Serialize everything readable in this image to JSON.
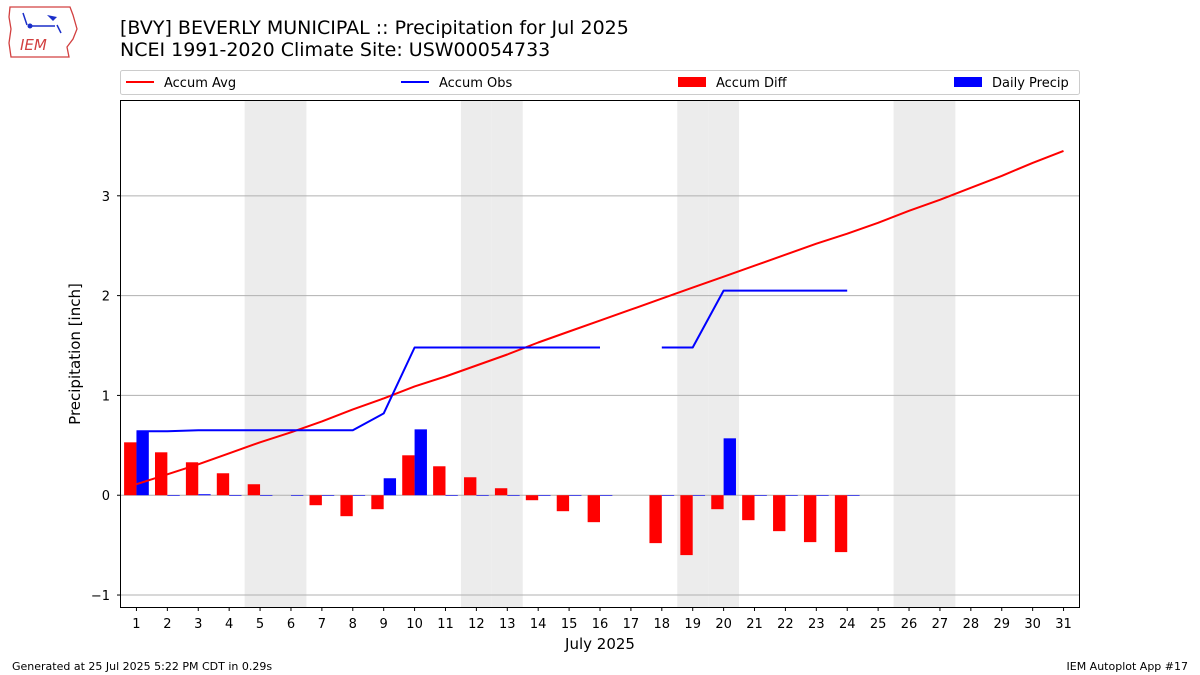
{
  "header": {
    "title_line1": "[BVY] BEVERLY MUNICIPAL :: Precipitation for Jul 2025",
    "title_line2": "NCEI 1991-2020 Climate Site: USW00054733",
    "logo_text": "IEM"
  },
  "footer": {
    "left": "Generated at 25 Jul 2025 5:22 PM CDT in 0.29s",
    "right": "IEM Autoplot App #17"
  },
  "colors": {
    "avg": "#ff0000",
    "obs": "#0000ff",
    "diff": "#ff0000",
    "daily": "#0000ff",
    "weekend": "#ececec",
    "grid": "#b0b0b0"
  },
  "chart_data": {
    "type": "bar",
    "xlabel": "July 2025",
    "ylabel": "Precipitation [inch]",
    "xlim": [
      0.5,
      31.5
    ],
    "ylim": [
      -1.12,
      3.95
    ],
    "yticks": [
      -1,
      0,
      1,
      2,
      3
    ],
    "grid": "horizontal",
    "legend_position": "top",
    "days": [
      1,
      2,
      3,
      4,
      5,
      6,
      7,
      8,
      9,
      10,
      11,
      12,
      13,
      14,
      15,
      16,
      17,
      18,
      19,
      20,
      21,
      22,
      23,
      24,
      25,
      26,
      27,
      28,
      29,
      30,
      31
    ],
    "weekend_days": [
      5,
      6,
      12,
      13,
      19,
      20,
      26,
      27
    ],
    "legend": [
      {
        "label": "Accum Avg",
        "kind": "line",
        "color": "#ff0000"
      },
      {
        "label": "Accum Obs",
        "kind": "line",
        "color": "#0000ff"
      },
      {
        "label": "Accum Diff",
        "kind": "bar",
        "color": "#ff0000"
      },
      {
        "label": "Daily Precip",
        "kind": "bar",
        "color": "#0000ff"
      }
    ],
    "series": [
      {
        "name": "Accum Avg",
        "type": "line",
        "values": [
          0.11,
          0.21,
          0.31,
          0.42,
          0.53,
          0.63,
          0.74,
          0.86,
          0.97,
          1.09,
          1.19,
          1.3,
          1.41,
          1.53,
          1.64,
          1.75,
          1.86,
          1.97,
          2.08,
          2.19,
          2.3,
          2.41,
          2.52,
          2.62,
          2.73,
          2.85,
          2.96,
          3.08,
          3.2,
          3.33,
          3.45
        ]
      },
      {
        "name": "Accum Obs",
        "type": "line",
        "values": [
          0.64,
          0.64,
          0.65,
          0.65,
          0.65,
          0.65,
          0.65,
          0.65,
          0.82,
          1.48,
          1.48,
          1.48,
          1.48,
          1.48,
          1.48,
          1.48,
          null,
          1.48,
          1.48,
          2.05,
          2.05,
          2.05,
          2.05,
          2.05,
          null,
          null,
          null,
          null,
          null,
          null,
          null
        ]
      },
      {
        "name": "Accum Diff",
        "type": "bar",
        "values": [
          0.53,
          0.43,
          0.33,
          0.22,
          0.11,
          null,
          -0.1,
          -0.21,
          -0.14,
          0.4,
          0.29,
          0.18,
          0.07,
          -0.05,
          -0.16,
          -0.27,
          null,
          -0.48,
          -0.6,
          -0.14,
          -0.25,
          -0.36,
          -0.47,
          -0.57,
          null,
          null,
          null,
          null,
          null,
          null,
          null
        ]
      },
      {
        "name": "Daily Precip",
        "type": "bar",
        "values": [
          0.64,
          0,
          0.01,
          0,
          0,
          0,
          0,
          0,
          0.17,
          0.66,
          0,
          0,
          0,
          0,
          0,
          0,
          null,
          0,
          0,
          0.57,
          0,
          0,
          0,
          0,
          null,
          null,
          null,
          null,
          null,
          null,
          null
        ]
      }
    ]
  }
}
